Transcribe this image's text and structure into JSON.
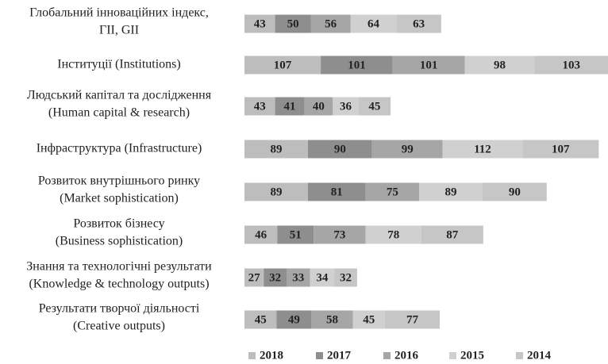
{
  "chart_data": {
    "type": "stacked-bar-horizontal",
    "categories": [
      [
        "Глобальний інноваційних індекс,",
        "ГІІ, GII"
      ],
      [
        "Інституції (Institutions)"
      ],
      [
        "Людський капітал та дослідження",
        "(Human capital & research)"
      ],
      [
        "Інфраструктура (Infrastructure)"
      ],
      [
        "Розвиток внутрішнього ринку",
        "(Market sophistication)"
      ],
      [
        "Розвиток  бізнесу",
        "(Business sophistication)"
      ],
      [
        "Знання та технологічні результати",
        "(Knowledge & technology outputs)"
      ],
      [
        "Результати творчої діяльності",
        "(Creative outputs)"
      ]
    ],
    "series": [
      {
        "name": "2018",
        "color": "#bdbdbd",
        "values": [
          43,
          107,
          43,
          89,
          89,
          46,
          27,
          45
        ]
      },
      {
        "name": "2017",
        "color": "#8e8e8e",
        "values": [
          50,
          101,
          41,
          90,
          81,
          51,
          32,
          49
        ]
      },
      {
        "name": "2016",
        "color": "#a6a6a6",
        "values": [
          56,
          101,
          40,
          99,
          75,
          73,
          33,
          58
        ]
      },
      {
        "name": "2015",
        "color": "#d0d0d0",
        "values": [
          64,
          98,
          36,
          112,
          89,
          78,
          34,
          45
        ]
      },
      {
        "name": "2014",
        "color": "#c6c6c6",
        "values": [
          63,
          103,
          45,
          107,
          90,
          87,
          32,
          77
        ]
      }
    ],
    "legend": "bottom"
  }
}
